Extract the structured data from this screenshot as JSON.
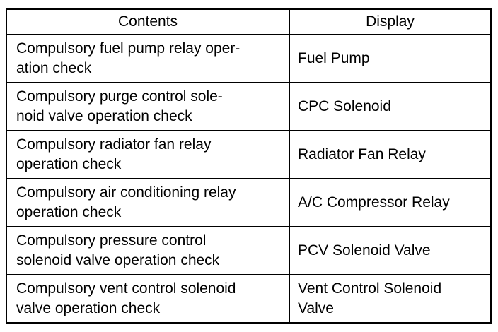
{
  "table": {
    "headers": [
      "Contents",
      "Display"
    ],
    "rows": [
      {
        "contents": [
          "Compulsory fuel pump relay oper-",
          "ation check"
        ],
        "display": [
          "Fuel Pump"
        ]
      },
      {
        "contents": [
          "Compulsory purge control sole-",
          "noid valve operation check"
        ],
        "display": [
          "CPC Solenoid"
        ]
      },
      {
        "contents": [
          "Compulsory radiator fan relay",
          "operation check"
        ],
        "display": [
          "Radiator Fan Relay"
        ]
      },
      {
        "contents": [
          "Compulsory air conditioning relay",
          "operation check"
        ],
        "display": [
          "A/C Compressor Relay"
        ]
      },
      {
        "contents": [
          "Compulsory pressure control",
          "solenoid valve operation check"
        ],
        "display": [
          "PCV Solenoid Valve"
        ]
      },
      {
        "contents": [
          "Compulsory vent control solenoid",
          "valve operation check"
        ],
        "display": [
          "Vent Control Solenoid",
          "Valve"
        ]
      }
    ]
  }
}
